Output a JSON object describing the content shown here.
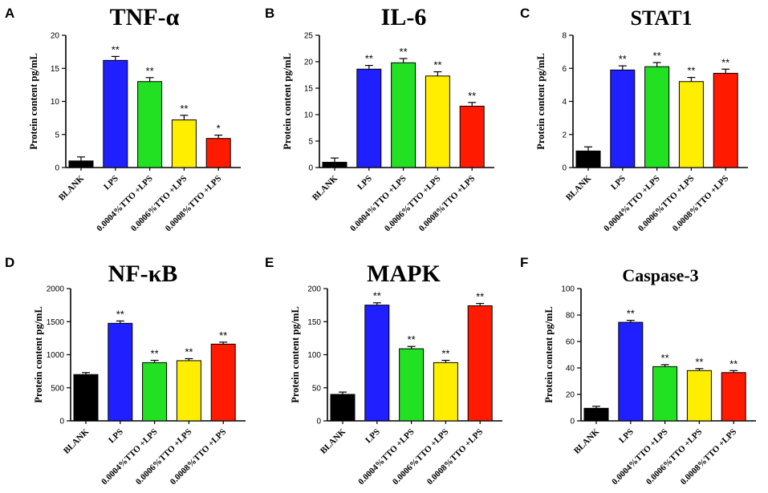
{
  "chart_data": [
    {
      "panel": "A",
      "type": "bar",
      "title": "TNF-α",
      "ylabel": "Protein content pg/mL",
      "ylim": [
        0,
        20
      ],
      "yticks": [
        0,
        5,
        10,
        15,
        20
      ],
      "categories": [
        "BLANK",
        "LPS",
        "0.0004%TTO +LPS",
        "0.0006%TTO +LPS",
        "0.0008%TTO +LPS"
      ],
      "values": [
        1.0,
        16.2,
        13.0,
        7.2,
        4.4
      ],
      "errors": [
        0.6,
        0.6,
        0.6,
        0.7,
        0.5
      ],
      "significance": [
        "",
        "**",
        "**",
        "**",
        "*"
      ],
      "colors": [
        "#000000",
        "#1f1fff",
        "#22e022",
        "#ffee00",
        "#ff1a00"
      ]
    },
    {
      "panel": "B",
      "type": "bar",
      "title": "IL-6",
      "ylabel": "Protein content pg/mL",
      "ylim": [
        0,
        25
      ],
      "yticks": [
        0,
        5,
        10,
        15,
        20,
        25
      ],
      "categories": [
        "BLANK",
        "LPS",
        "0.0004%TTO +LPS",
        "0.0006%TTO +LPS",
        "0.0008%TTO +LPS"
      ],
      "values": [
        1.0,
        18.6,
        19.8,
        17.3,
        11.6
      ],
      "errors": [
        0.8,
        0.7,
        0.8,
        0.8,
        0.7
      ],
      "significance": [
        "",
        "**",
        "**",
        "**",
        "**"
      ],
      "colors": [
        "#000000",
        "#1f1fff",
        "#22e022",
        "#ffee00",
        "#ff1a00"
      ]
    },
    {
      "panel": "C",
      "type": "bar",
      "title": "STAT1",
      "ylabel": "Protein content pg/mL",
      "ylim": [
        0,
        8
      ],
      "yticks": [
        0,
        2,
        4,
        6,
        8
      ],
      "categories": [
        "BLANK",
        "LPS",
        "0.0004%TTO +LPS",
        "0.0006%TTO +LPS",
        "0.0008%TTO +LPS"
      ],
      "values": [
        1.0,
        5.9,
        6.1,
        5.2,
        5.7
      ],
      "errors": [
        0.25,
        0.25,
        0.25,
        0.25,
        0.25
      ],
      "significance": [
        "",
        "**",
        "**",
        "**",
        "**"
      ],
      "colors": [
        "#000000",
        "#1f1fff",
        "#22e022",
        "#ffee00",
        "#ff1a00"
      ]
    },
    {
      "panel": "D",
      "type": "bar",
      "title": "NF-κB",
      "ylabel": "Protein content pg/mL",
      "ylim": [
        0,
        2000
      ],
      "yticks": [
        0,
        500,
        1000,
        1500,
        2000
      ],
      "categories": [
        "BLANK",
        "LPS",
        "0.0004%TTO +LPS",
        "0.0006%TTO +LPS",
        "0.0008%TTO +LPS"
      ],
      "values": [
        700,
        1475,
        880,
        910,
        1160
      ],
      "errors": [
        30,
        35,
        35,
        30,
        30
      ],
      "significance": [
        "",
        "**",
        "**",
        "**",
        "**"
      ],
      "colors": [
        "#000000",
        "#1f1fff",
        "#22e022",
        "#ffee00",
        "#ff1a00"
      ]
    },
    {
      "panel": "E",
      "type": "bar",
      "title": "MAPK",
      "ylabel": "Protein content pg/mL",
      "ylim": [
        0,
        200
      ],
      "yticks": [
        0,
        50,
        100,
        150,
        200
      ],
      "categories": [
        "BLANK",
        "LPS",
        "0.0004%TTO +LPS",
        "0.0006%TTO +LPS",
        "0.0008%TTO +LPS"
      ],
      "values": [
        40,
        175,
        109,
        88,
        174
      ],
      "errors": [
        3.5,
        3.5,
        3.5,
        3.5,
        3.5
      ],
      "significance": [
        "",
        "**",
        "**",
        "**",
        "**"
      ],
      "colors": [
        "#000000",
        "#1f1fff",
        "#22e022",
        "#ffee00",
        "#ff1a00"
      ]
    },
    {
      "panel": "F",
      "type": "bar",
      "title": "Caspase-3",
      "ylabel": "Protein content pg/mL",
      "ylim": [
        0,
        100
      ],
      "yticks": [
        0,
        20,
        40,
        60,
        80,
        100
      ],
      "categories": [
        "BLANK",
        "LPS",
        "0.0004%TTO +LPS",
        "0.0006%TTO +LPS",
        "0.0008%TTO +LPS"
      ],
      "values": [
        9.5,
        74.5,
        41,
        38,
        36.5
      ],
      "errors": [
        1.5,
        1.5,
        1.5,
        1.5,
        1.5
      ],
      "significance": [
        "",
        "**",
        "**",
        "**",
        "**"
      ],
      "colors": [
        "#000000",
        "#1f1fff",
        "#22e022",
        "#ffee00",
        "#ff1a00"
      ]
    }
  ]
}
